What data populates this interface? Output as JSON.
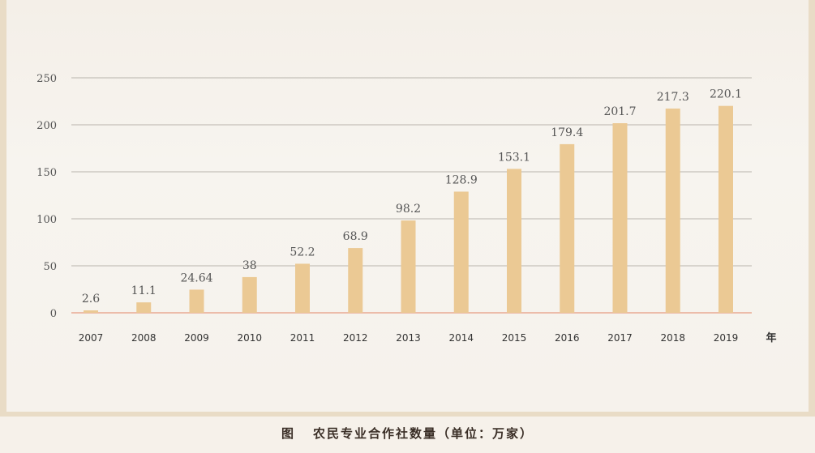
{
  "caption": {
    "figure_label": "图",
    "text": "农民专业合作社数量（单位：万家）"
  },
  "chart_data": {
    "type": "bar",
    "categories": [
      "2007",
      "2008",
      "2009",
      "2010",
      "2011",
      "2012",
      "2013",
      "2014",
      "2015",
      "2016",
      "2017",
      "2018",
      "2019"
    ],
    "values": [
      2.6,
      11.1,
      24.64,
      38,
      52.2,
      68.9,
      98.2,
      128.9,
      153.1,
      179.4,
      201.7,
      217.3,
      220.1
    ],
    "data_labels": [
      "2.6",
      "11.1",
      "24.64",
      "38",
      "52.2",
      "68.9",
      "98.2",
      "128.9",
      "153.1",
      "179.4",
      "201.7",
      "217.3",
      "220.1"
    ],
    "xunit": "年",
    "yticks": [
      "0",
      "50",
      "100",
      "150",
      "200",
      "250"
    ],
    "ylim": [
      0,
      250
    ],
    "grid": true,
    "colors": {
      "bar": "#ebc994",
      "grid": "#b9b4ad",
      "baseline": "#e8a994",
      "text": "#555555"
    }
  }
}
